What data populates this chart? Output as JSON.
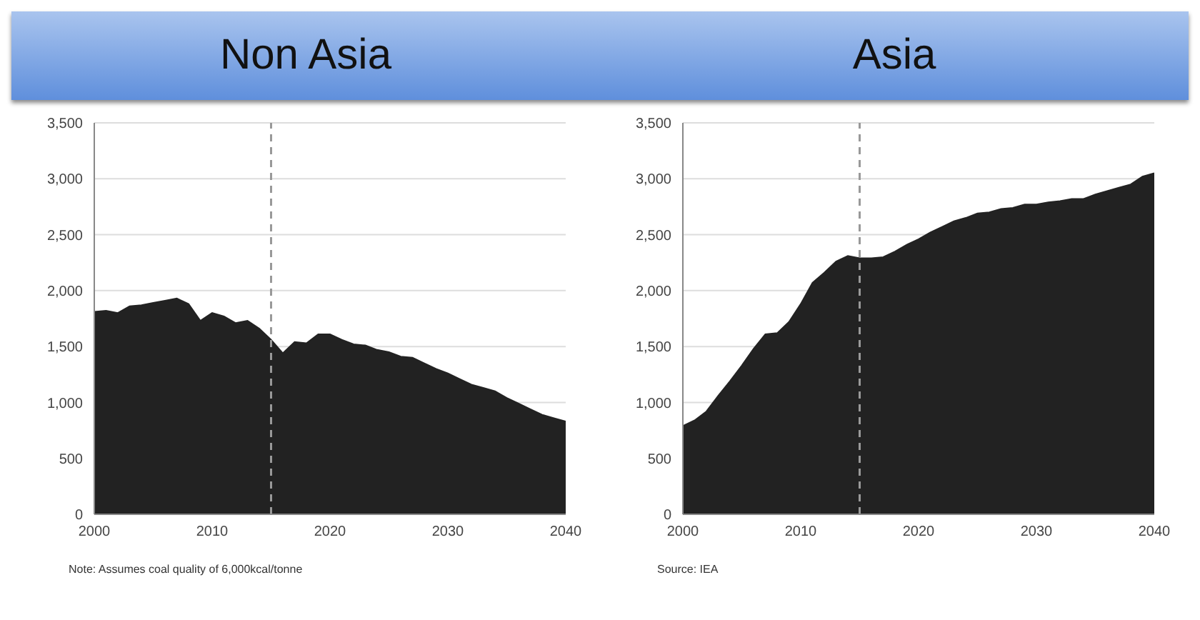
{
  "chart_data": [
    {
      "type": "area",
      "title": "Non Asia",
      "x": [
        2000,
        2001,
        2002,
        2003,
        2004,
        2005,
        2006,
        2007,
        2008,
        2009,
        2010,
        2011,
        2012,
        2013,
        2014,
        2015,
        2016,
        2017,
        2018,
        2019,
        2020,
        2021,
        2022,
        2023,
        2024,
        2025,
        2026,
        2027,
        2028,
        2029,
        2030,
        2031,
        2032,
        2033,
        2034,
        2035,
        2036,
        2037,
        2038,
        2039,
        2040
      ],
      "series": [
        {
          "color": "#222222",
          "values": [
            1810,
            1820,
            1800,
            1860,
            1870,
            1890,
            1910,
            1930,
            1880,
            1730,
            1800,
            1770,
            1710,
            1730,
            1660,
            1560,
            1440,
            1540,
            1530,
            1610,
            1610,
            1560,
            1520,
            1510,
            1470,
            1450,
            1410,
            1400,
            1350,
            1300,
            1260,
            1210,
            1160,
            1130,
            1100,
            1040,
            990,
            940,
            890,
            860,
            830
          ]
        }
      ],
      "xlim": [
        2000,
        2040
      ],
      "xticks": [
        2000,
        2010,
        2020,
        2030,
        2040
      ],
      "ylim": [
        0,
        3500
      ],
      "yticks": [
        {
          "value": 0,
          "label": "0"
        },
        {
          "value": 500,
          "label": "500"
        },
        {
          "value": 1000,
          "label": "1,000"
        },
        {
          "value": 1500,
          "label": "1,500"
        },
        {
          "value": 2000,
          "label": "2,000"
        },
        {
          "value": 2500,
          "label": "2,500"
        },
        {
          "value": 3000,
          "label": "3,000"
        },
        {
          "value": 3500,
          "label": "3,500"
        }
      ],
      "grid": "y",
      "legend": false,
      "ref_lines": [
        {
          "axis": "x",
          "value": 2015,
          "color": "#999999",
          "line_style": "dashed"
        }
      ],
      "annotations": [
        "Note: Assumes coal quality of 6,000kcal/tonne"
      ]
    },
    {
      "type": "area",
      "title": "Asia",
      "x": [
        2000,
        2001,
        2002,
        2003,
        2004,
        2005,
        2006,
        2007,
        2008,
        2009,
        2010,
        2011,
        2012,
        2013,
        2014,
        2015,
        2016,
        2017,
        2018,
        2019,
        2020,
        2021,
        2022,
        2023,
        2024,
        2025,
        2026,
        2027,
        2028,
        2029,
        2030,
        2031,
        2032,
        2033,
        2034,
        2035,
        2036,
        2037,
        2038,
        2039,
        2040
      ],
      "series": [
        {
          "color": "#222222",
          "values": [
            790,
            840,
            920,
            1060,
            1190,
            1330,
            1480,
            1610,
            1620,
            1720,
            1880,
            2070,
            2160,
            2260,
            2310,
            2290,
            2290,
            2300,
            2350,
            2410,
            2460,
            2520,
            2570,
            2620,
            2650,
            2690,
            2700,
            2730,
            2740,
            2770,
            2770,
            2790,
            2800,
            2820,
            2820,
            2860,
            2890,
            2920,
            2950,
            3020,
            3050
          ]
        }
      ],
      "xlim": [
        2000,
        2040
      ],
      "xticks": [
        2000,
        2010,
        2020,
        2030,
        2040
      ],
      "ylim": [
        0,
        3500
      ],
      "yticks": [
        {
          "value": 0,
          "label": "0"
        },
        {
          "value": 500,
          "label": "500"
        },
        {
          "value": 1000,
          "label": "1,000"
        },
        {
          "value": 1500,
          "label": "1,500"
        },
        {
          "value": 2000,
          "label": "2,000"
        },
        {
          "value": 2500,
          "label": "2,500"
        },
        {
          "value": 3000,
          "label": "3,000"
        },
        {
          "value": 3500,
          "label": "3,500"
        }
      ],
      "grid": "y",
      "legend": false,
      "ref_lines": [
        {
          "axis": "x",
          "value": 2015,
          "color": "#999999",
          "line_style": "dashed"
        }
      ],
      "annotations": [
        "Source: IEA"
      ]
    }
  ]
}
